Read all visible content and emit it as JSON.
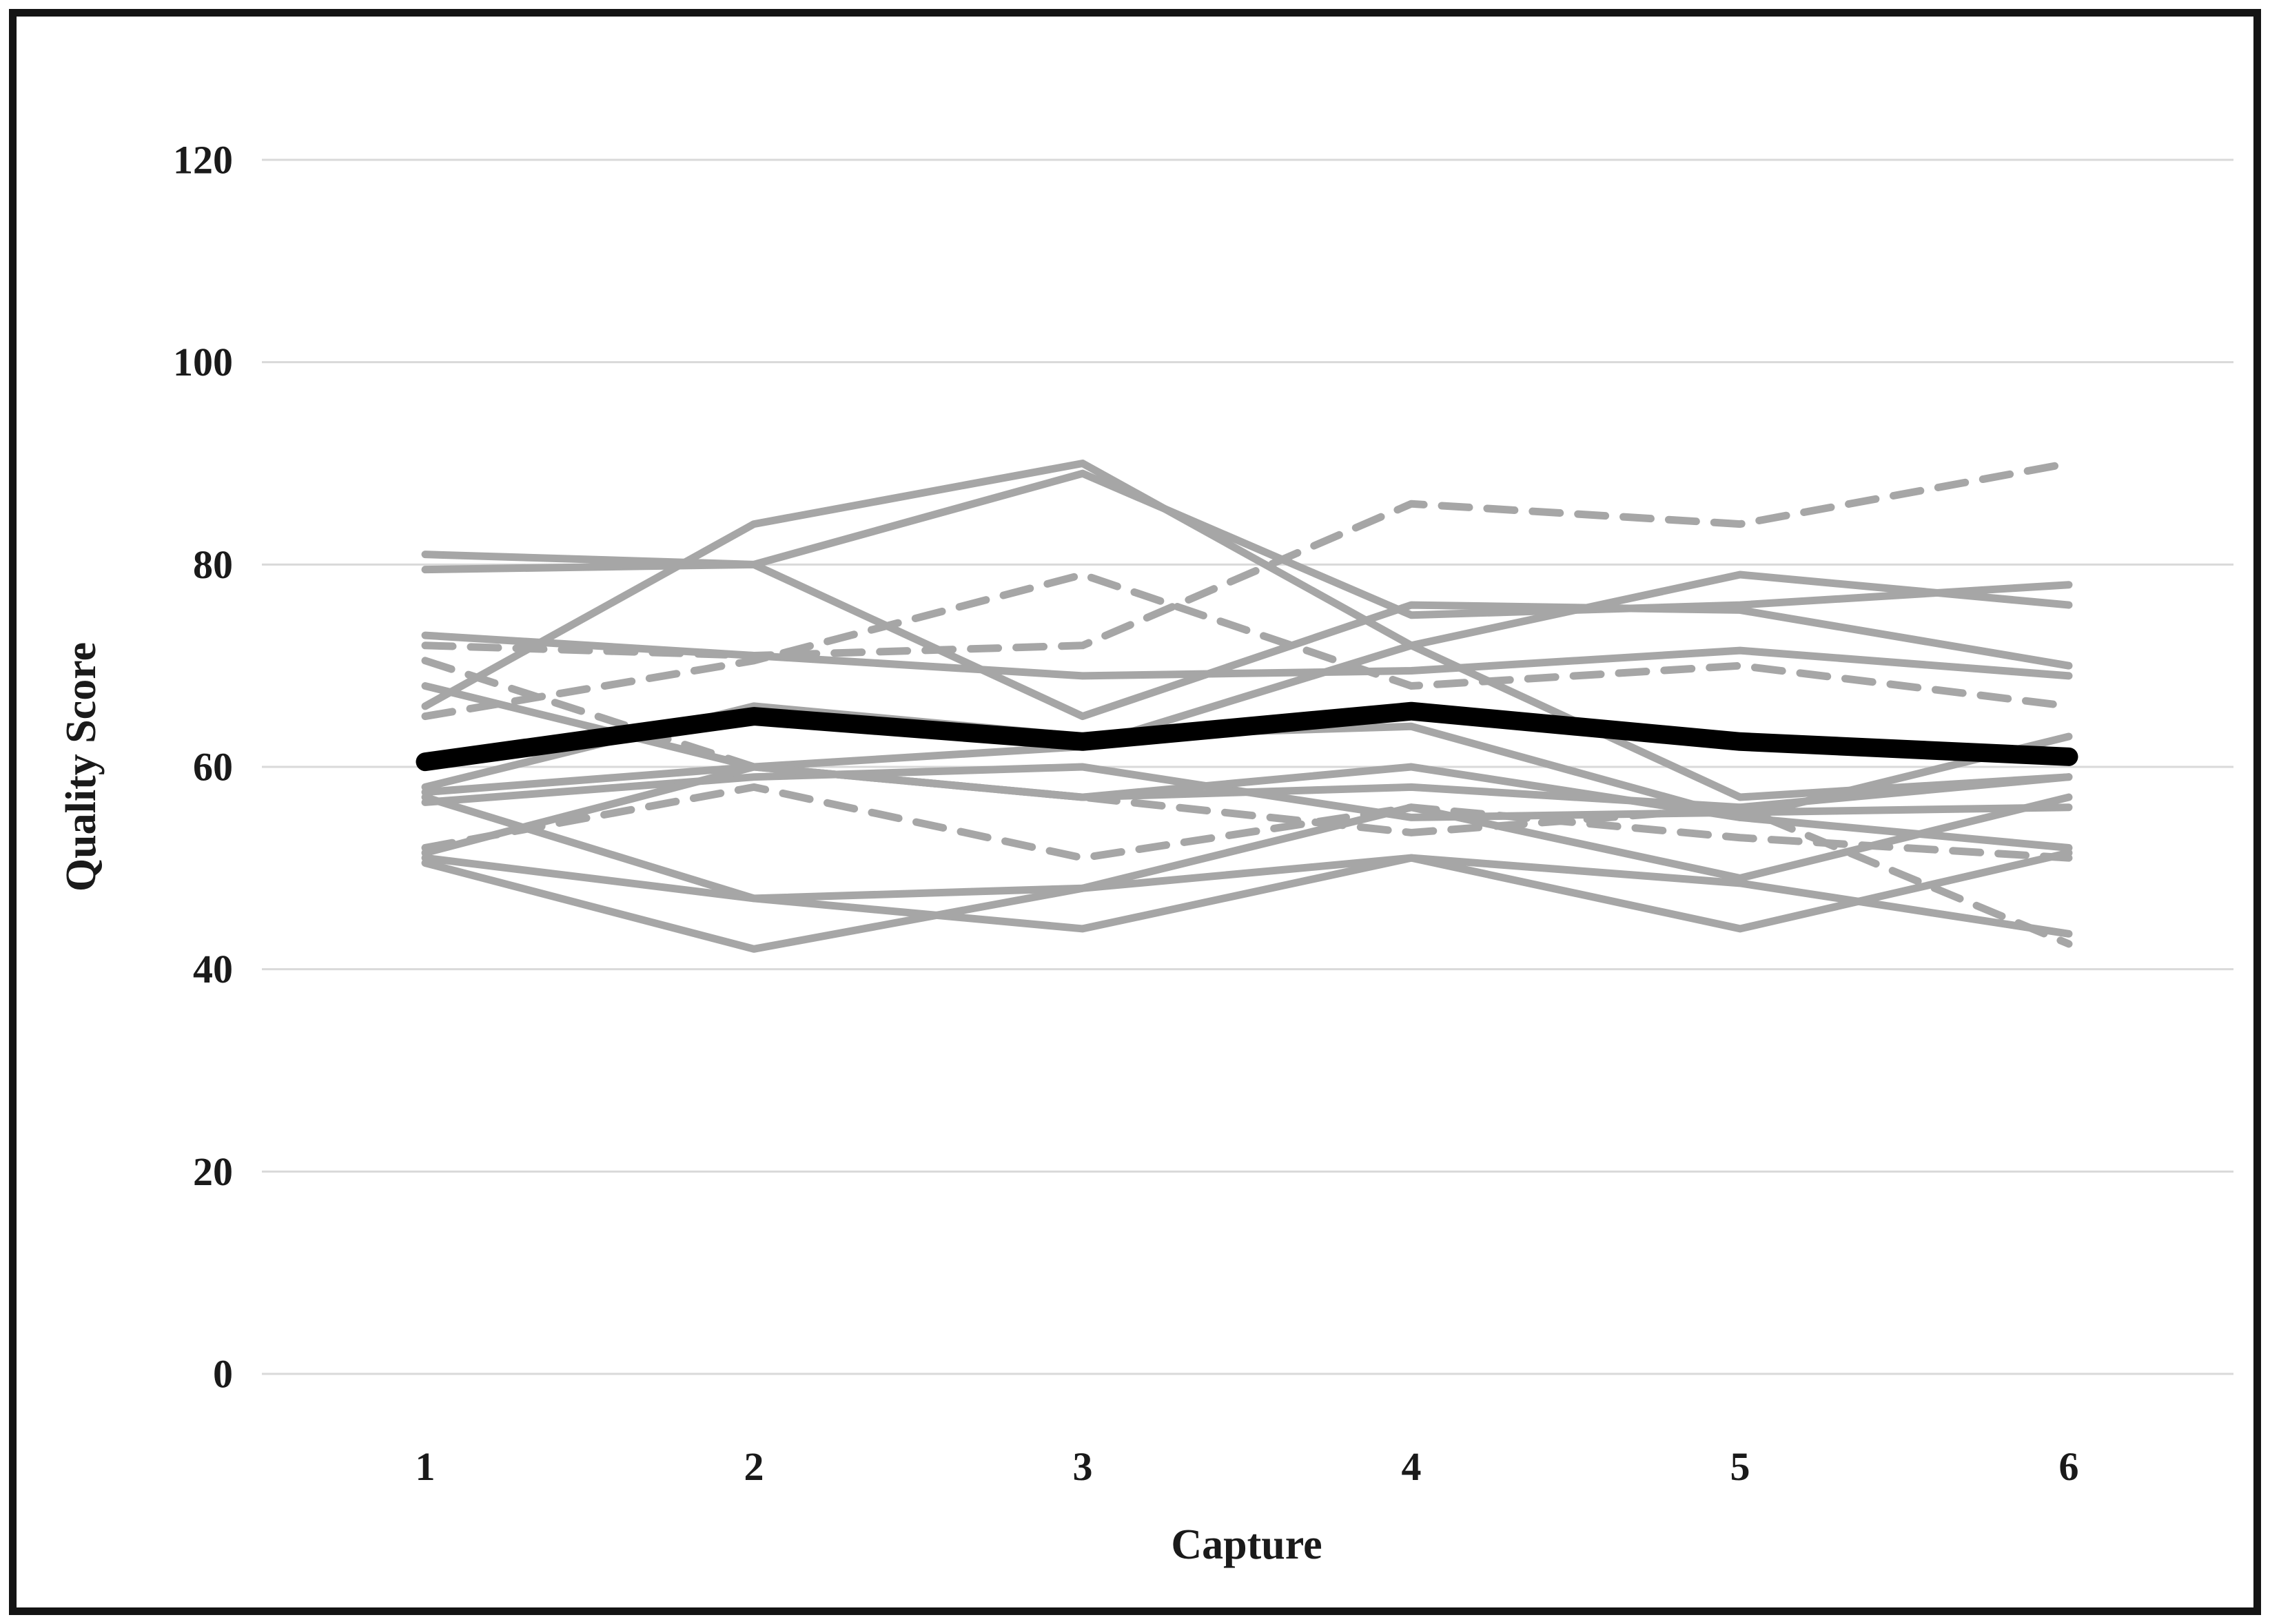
{
  "chart_data": {
    "type": "line",
    "title": "",
    "xlabel": "Capture",
    "ylabel": "Quality Score",
    "x_categories": [
      "1",
      "2",
      "3",
      "4",
      "5",
      "6"
    ],
    "ylim": [
      0,
      120
    ],
    "yticks": [
      0,
      20,
      40,
      60,
      80,
      100,
      120
    ],
    "grid": "horizontal",
    "legend": "none",
    "colors": {
      "participant_line": "#a6a6a6",
      "mean_line": "#000000",
      "gridline": "#d9d9d9",
      "text": "#1a1a1a",
      "frame_border": "#141414",
      "background": "#ffffff"
    },
    "series": [
      {
        "name": "gray-solid-1",
        "style": "solid",
        "role": "individual",
        "values": [
          81,
          80,
          89,
          75,
          76,
          78
        ]
      },
      {
        "name": "gray-solid-2",
        "style": "solid",
        "role": "individual",
        "values": [
          66,
          84,
          90,
          72,
          79,
          76
        ]
      },
      {
        "name": "gray-solid-3",
        "style": "solid",
        "role": "individual",
        "values": [
          79.5,
          80,
          65,
          76,
          75.5,
          70
        ]
      },
      {
        "name": "gray-solid-4",
        "style": "solid",
        "role": "individual",
        "values": [
          73,
          71,
          69,
          69.5,
          71.5,
          69
        ]
      },
      {
        "name": "gray-solid-5",
        "style": "solid",
        "role": "individual",
        "values": [
          68,
          60,
          62,
          72,
          57,
          59
        ]
      },
      {
        "name": "gray-solid-6",
        "style": "solid",
        "role": "individual",
        "values": [
          58,
          66,
          63,
          64,
          55,
          63
        ]
      },
      {
        "name": "gray-solid-7",
        "style": "solid",
        "role": "individual",
        "values": [
          57.5,
          60,
          57,
          58,
          56,
          59
        ]
      },
      {
        "name": "gray-solid-8",
        "style": "solid",
        "role": "individual",
        "values": [
          57,
          47,
          48,
          56,
          49,
          57
        ]
      },
      {
        "name": "gray-solid-9",
        "style": "solid",
        "role": "individual",
        "values": [
          56.5,
          59,
          60,
          55,
          55.5,
          56
        ]
      },
      {
        "name": "gray-solid-10",
        "style": "solid",
        "role": "individual",
        "values": [
          51.5,
          60,
          57,
          60,
          55,
          52
        ]
      },
      {
        "name": "gray-solid-11",
        "style": "solid",
        "role": "individual",
        "values": [
          51,
          47,
          44,
          51,
          44,
          51.5
        ]
      },
      {
        "name": "gray-solid-12",
        "style": "solid",
        "role": "individual",
        "values": [
          50.5,
          42,
          48,
          51,
          48.5,
          43.5
        ]
      },
      {
        "name": "gray-dashed-1",
        "style": "dashed",
        "role": "individual",
        "values": [
          72,
          71,
          72,
          86,
          84,
          90
        ]
      },
      {
        "name": "gray-dashed-2",
        "style": "dashed",
        "role": "individual",
        "values": [
          65,
          70.5,
          79,
          68,
          70,
          66
        ]
      },
      {
        "name": "gray-dashed-3",
        "style": "dashed",
        "role": "individual",
        "values": [
          70.5,
          60,
          57,
          53.5,
          56,
          42.5
        ]
      },
      {
        "name": "gray-dashed-4",
        "style": "dashed",
        "role": "individual",
        "values": [
          52,
          58,
          51,
          56,
          53,
          51
        ]
      },
      {
        "name": "mean",
        "style": "solid",
        "role": "mean",
        "values": [
          60.5,
          65,
          62.5,
          65.5,
          62.5,
          61
        ]
      }
    ]
  }
}
